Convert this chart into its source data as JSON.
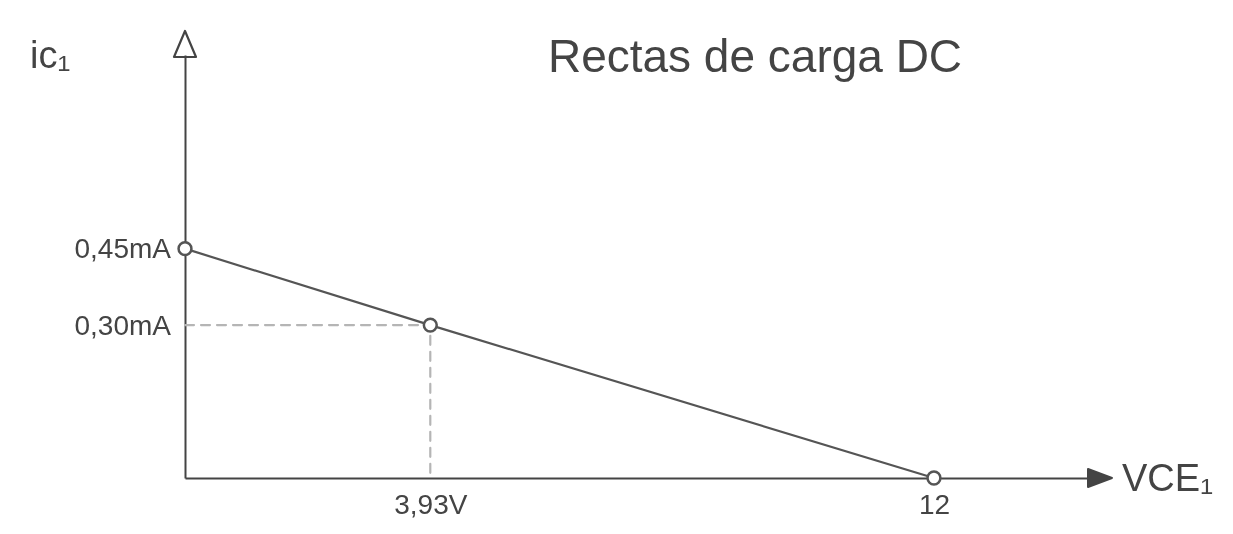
{
  "chart_data": {
    "type": "line",
    "title": "Rectas de carga DC",
    "xlabel": "VCE₁",
    "ylabel": "ic₁",
    "xlim": [
      0,
      14.5
    ],
    "ylim": [
      0,
      0.83
    ],
    "xticks": [
      {
        "value": 3.93,
        "label": "3,93V"
      },
      12
    ],
    "yticks": [
      {
        "value": 0.3,
        "label": "0,30mA"
      },
      {
        "value": 0.45,
        "label": "0,45mA"
      }
    ],
    "series": [
      {
        "color": "#555555",
        "x": [
          0,
          3.93,
          12
        ],
        "values": [
          0.45,
          0.3,
          0
        ],
        "marker": "circle",
        "line_style": "solid"
      },
      {
        "color": "#b5b5b5",
        "x": [
          0,
          3.93,
          3.93
        ],
        "values": [
          0.3,
          0.3,
          0
        ],
        "marker": "none",
        "line_style": "dashed"
      }
    ]
  }
}
